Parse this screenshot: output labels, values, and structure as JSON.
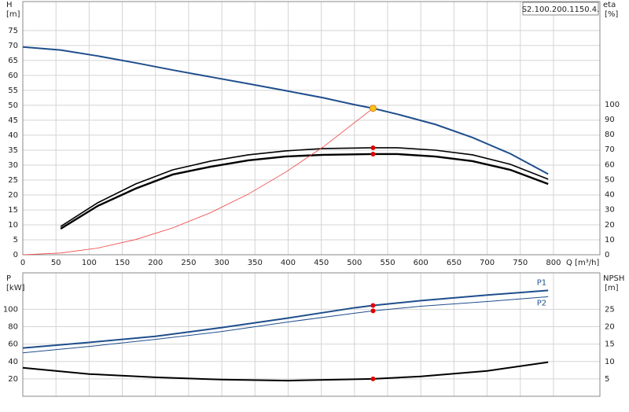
{
  "chart_data": [
    {
      "type": "line",
      "annotation": "S2.100.200.1150.4.",
      "y_label": "H",
      "y_unit": "[m]",
      "y2_label": "eta",
      "y2_unit": "[%]",
      "x_label": "Q [m³/h]",
      "xlim": [
        0,
        870
      ],
      "xticks": [
        0,
        50,
        100,
        150,
        200,
        250,
        300,
        350,
        400,
        450,
        500,
        550,
        600,
        650,
        700,
        750,
        800
      ],
      "ylim": [
        0,
        84.7
      ],
      "yticks": [
        0,
        5,
        10,
        15,
        20,
        25,
        30,
        35,
        40,
        45,
        50,
        55,
        60,
        65,
        70,
        75
      ],
      "y2lim": [
        0,
        168.5
      ],
      "y2ticks": [
        0,
        10,
        20,
        30,
        40,
        50,
        60,
        70,
        80,
        90,
        100
      ],
      "grid": true,
      "series": [
        {
          "color": "#1f4e8c",
          "width": 2,
          "x": [
            0,
            57,
            113,
            170,
            226,
            283,
            340,
            396,
            453,
            500,
            528,
            565,
            622,
            678,
            735,
            792
          ],
          "values": [
            69.5,
            68.5,
            66.5,
            64.2,
            61.8,
            59.5,
            57.2,
            54.9,
            52.5,
            50.2,
            49,
            47,
            43.6,
            39.2,
            33.8,
            27
          ]
        },
        {
          "color": "#000000",
          "width": 1.6,
          "axis": "y2",
          "x": [
            57,
            113,
            170,
            226,
            283,
            340,
            396,
            453,
            528,
            565,
            622,
            678,
            735,
            792
          ],
          "values": [
            18.8,
            34.6,
            47.1,
            56.5,
            62.3,
            66.5,
            69.1,
            70.7,
            71.2,
            71.2,
            69.6,
            66.5,
            60.2,
            50.3
          ]
        },
        {
          "color": "#000000",
          "width": 2.4,
          "axis": "y2",
          "x": [
            57,
            113,
            170,
            226,
            283,
            340,
            396,
            453,
            528,
            565,
            622,
            678,
            735,
            792
          ],
          "values": [
            17.3,
            32.5,
            44,
            53.4,
            58.6,
            62.8,
            65.4,
            66.5,
            67,
            67,
            65.4,
            62.3,
            56.5,
            47.1
          ]
        },
        {
          "color": "#f04040",
          "width": 0.8,
          "x": [
            0,
            57,
            113,
            170,
            226,
            283,
            340,
            396,
            453,
            528
          ],
          "values": [
            0,
            0.57,
            2.24,
            5.08,
            8.98,
            14.08,
            20.3,
            27.6,
            36.1,
            49
          ]
        }
      ],
      "points": [
        {
          "x": 528,
          "value": 49,
          "color": "#f5c518"
        },
        {
          "x": 528,
          "value": 71.2,
          "color": "#e00000",
          "axis": "y2"
        },
        {
          "x": 528,
          "value": 67,
          "color": "#e00000",
          "axis": "y2"
        }
      ]
    },
    {
      "type": "line",
      "y_label": "P",
      "y_unit": "[kW]",
      "y2_label": "NPSH",
      "y2_unit": "[m]",
      "xlim": [
        0,
        870
      ],
      "xticks": [
        0,
        50,
        100,
        150,
        200,
        250,
        300,
        350,
        400,
        450,
        500,
        550,
        600,
        650,
        700,
        750,
        800
      ],
      "ylim": [
        0,
        142
      ],
      "yticks": [
        20,
        40,
        60,
        80,
        100
      ],
      "y2lim": [
        0,
        35.5
      ],
      "y2ticks": [
        5,
        10,
        15,
        20,
        25
      ],
      "grid": true,
      "series": [
        {
          "name": "P1",
          "color": "#1f4e8c",
          "width": 2,
          "x": [
            0,
            100,
            200,
            300,
            400,
            500,
            528,
            600,
            700,
            792
          ],
          "values": [
            55.5,
            62,
            69,
            79,
            90,
            101.8,
            104.5,
            110,
            116.4,
            121.8
          ]
        },
        {
          "name": "P2",
          "color": "#1f4e8c",
          "width": 1,
          "x": [
            0,
            100,
            200,
            300,
            400,
            500,
            528,
            600,
            700,
            792
          ],
          "values": [
            50,
            57.3,
            65.5,
            74.5,
            85.5,
            95.5,
            98.2,
            103.6,
            109,
            114.5
          ]
        },
        {
          "color": "#000000",
          "width": 2,
          "axis": "y2",
          "x": [
            0,
            100,
            200,
            300,
            400,
            528,
            600,
            700,
            792
          ],
          "values": [
            8.2,
            6.4,
            5.45,
            4.8,
            4.5,
            5,
            5.7,
            7.3,
            9.8
          ]
        }
      ],
      "points": [
        {
          "x": 528,
          "value": 104.5,
          "color": "#e00000"
        },
        {
          "x": 528,
          "value": 98.2,
          "color": "#e00000"
        },
        {
          "x": 528,
          "value": 5,
          "color": "#e00000",
          "axis": "y2"
        }
      ]
    }
  ]
}
